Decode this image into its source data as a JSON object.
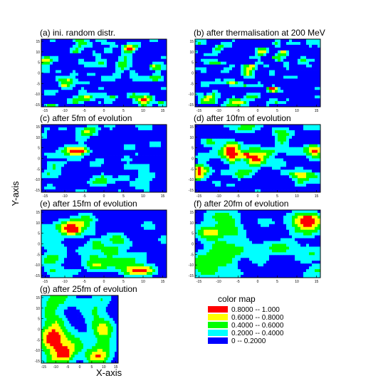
{
  "chart_data": {
    "type": "heatmap",
    "xlabel": "X-axis",
    "ylabel": "Y-axis",
    "xlim": [
      -16,
      16
    ],
    "ylim": [
      -16,
      16
    ],
    "xticks": [
      -15,
      -10,
      -5,
      0,
      5,
      10,
      15
    ],
    "yticks": [
      15,
      10,
      5,
      0,
      -5,
      -10,
      -15
    ],
    "panels": [
      {
        "title": "(a) ini. random distr.",
        "blob": 1.0,
        "seed": 11
      },
      {
        "title": "(b) after thermalisation at 200 MeV",
        "blob": 0.9,
        "seed": 23
      },
      {
        "title": "(c) after 5fm of evolution",
        "blob": 1.3,
        "seed": 37
      },
      {
        "title": "(d) after 10fm of evolution",
        "blob": 1.5,
        "seed": 41
      },
      {
        "title": "(e) after 15fm of evolution",
        "blob": 1.9,
        "seed": 53
      },
      {
        "title": "(f) after 20fm of evolution",
        "blob": 2.4,
        "seed": 67
      },
      {
        "title": "(g) after 25fm of evolution",
        "blob": 3.0,
        "seed": 79
      }
    ],
    "legend": {
      "title": "color map",
      "entries": [
        {
          "label": "0.8000  --  1.000",
          "color": "#ff0000",
          "min": 0.8,
          "max": 1.0
        },
        {
          "label": "0.6000  --  0.8000",
          "color": "#ffff00",
          "min": 0.6,
          "max": 0.8
        },
        {
          "label": "0.4000  --  0.6000",
          "color": "#00ff00",
          "min": 0.4,
          "max": 0.6
        },
        {
          "label": "0.2000  --  0.4000",
          "color": "#00ffff",
          "min": 0.2,
          "max": 0.4
        },
        {
          "label": "0  --  0.2000",
          "color": "#0000ff",
          "min": 0.0,
          "max": 0.2
        }
      ]
    }
  }
}
